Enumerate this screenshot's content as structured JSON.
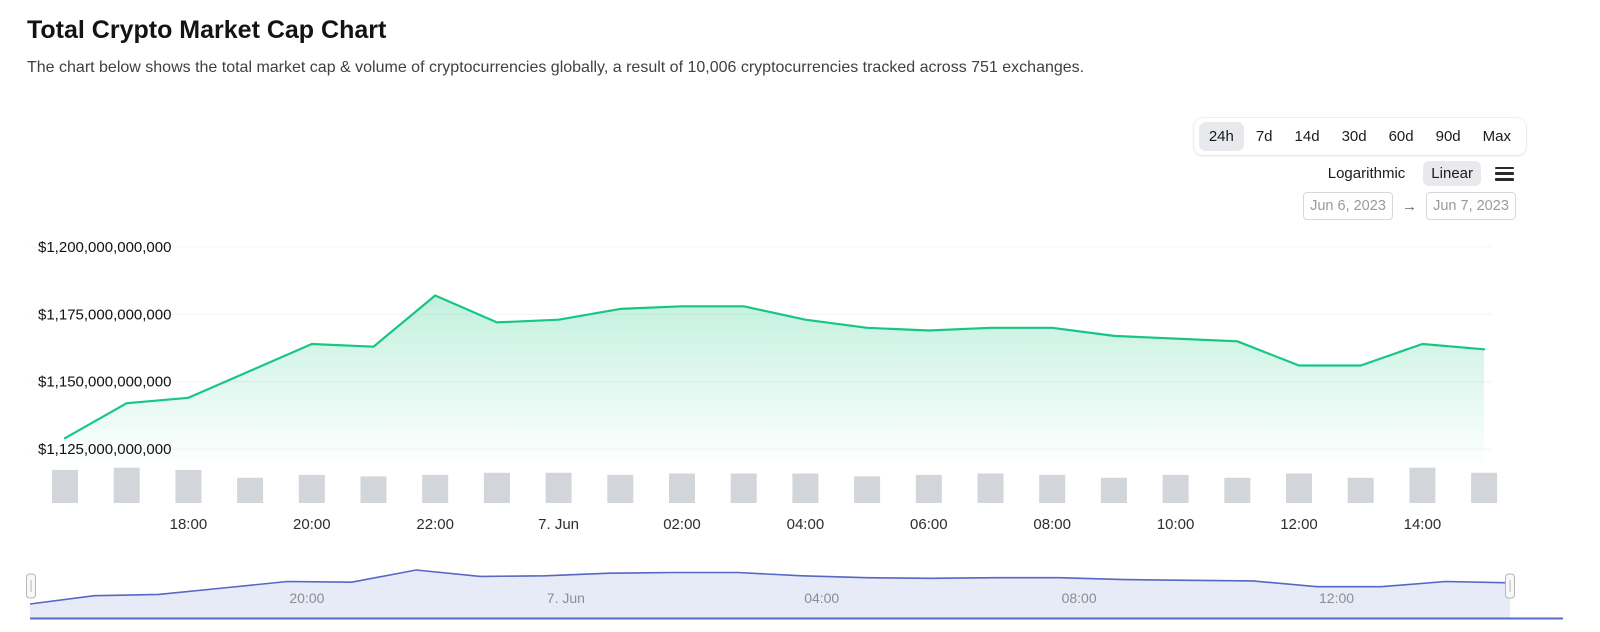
{
  "header": {
    "title": "Total Crypto Market Cap Chart",
    "subtitle": "The chart below shows the total market cap & volume of cryptocurrencies globally, a result of 10,006 cryptocurrencies tracked across 751 exchanges."
  },
  "toolbar": {
    "ranges": [
      {
        "label": "24h",
        "selected": true
      },
      {
        "label": "7d",
        "selected": false
      },
      {
        "label": "14d",
        "selected": false
      },
      {
        "label": "30d",
        "selected": false
      },
      {
        "label": "60d",
        "selected": false
      },
      {
        "label": "90d",
        "selected": false
      },
      {
        "label": "Max",
        "selected": false
      }
    ],
    "scales": [
      {
        "label": "Logarithmic",
        "selected": false
      },
      {
        "label": "Linear",
        "selected": true
      }
    ],
    "menu_icon": "hamburger-menu-icon",
    "date_from": "Jun 6, 2023",
    "date_to": "Jun 7, 2023",
    "arrow": "→"
  },
  "chart_data": {
    "type": "line",
    "title": "Total Crypto Market Cap Chart",
    "unit": "USD billions",
    "ylim": [
      1125,
      1200
    ],
    "grid": true,
    "legend": "none",
    "x_hours": [
      "16:00",
      "17:00",
      "18:00",
      "19:00",
      "20:00",
      "21:00",
      "22:00",
      "23:00",
      "00:00",
      "01:00",
      "02:00",
      "03:00",
      "04:00",
      "05:00",
      "06:00",
      "07:00",
      "08:00",
      "09:00",
      "10:00",
      "11:00",
      "12:00",
      "13:00",
      "14:00",
      "15:00"
    ],
    "market_cap_billions": [
      1129,
      1142,
      1144,
      1154,
      1164,
      1163,
      1182,
      1172,
      1173,
      1177,
      1178,
      1178,
      1173,
      1170,
      1169,
      1170,
      1170,
      1167,
      1166,
      1165,
      1156,
      1156,
      1164,
      1162
    ],
    "volume_bars_relative": [
      0.92,
      0.98,
      0.92,
      0.7,
      0.78,
      0.74,
      0.78,
      0.84,
      0.84,
      0.78,
      0.82,
      0.82,
      0.82,
      0.74,
      0.78,
      0.82,
      0.78,
      0.7,
      0.78,
      0.7,
      0.82,
      0.7,
      0.98,
      0.84
    ],
    "y_axis": {
      "min": 1125,
      "max": 1200,
      "ticks": [
        {
          "label": "$1,200,000,000,000",
          "value": 1200
        },
        {
          "label": "$1,175,000,000,000",
          "value": 1175
        },
        {
          "label": "$1,150,000,000,000",
          "value": 1150
        },
        {
          "label": "$1,125,000,000,000",
          "value": 1125
        }
      ]
    },
    "x_axis": {
      "ticks": [
        {
          "label": "18:00",
          "index": 2
        },
        {
          "label": "20:00",
          "index": 4
        },
        {
          "label": "22:00",
          "index": 6
        },
        {
          "label": "7. Jun",
          "index": 8
        },
        {
          "label": "02:00",
          "index": 10
        },
        {
          "label": "04:00",
          "index": 12
        },
        {
          "label": "06:00",
          "index": 14
        },
        {
          "label": "08:00",
          "index": 16
        },
        {
          "label": "10:00",
          "index": 18
        },
        {
          "label": "12:00",
          "index": 20
        },
        {
          "label": "14:00",
          "index": 22
        }
      ]
    },
    "navigator": {
      "ticks": [
        {
          "label": "20:00",
          "index": 4
        },
        {
          "label": "7. Jun",
          "index": 8
        },
        {
          "label": "04:00",
          "index": 12
        },
        {
          "label": "08:00",
          "index": 16
        },
        {
          "label": "12:00",
          "index": 20
        }
      ]
    },
    "colors": {
      "line": "#16c784",
      "area_top": "#16c784",
      "volume": "#d2d5d9",
      "nav_line": "#5667c4",
      "nav_fill": "rgba(86,103,196,0.14)",
      "nav_baseline": "#5a68c6"
    }
  }
}
